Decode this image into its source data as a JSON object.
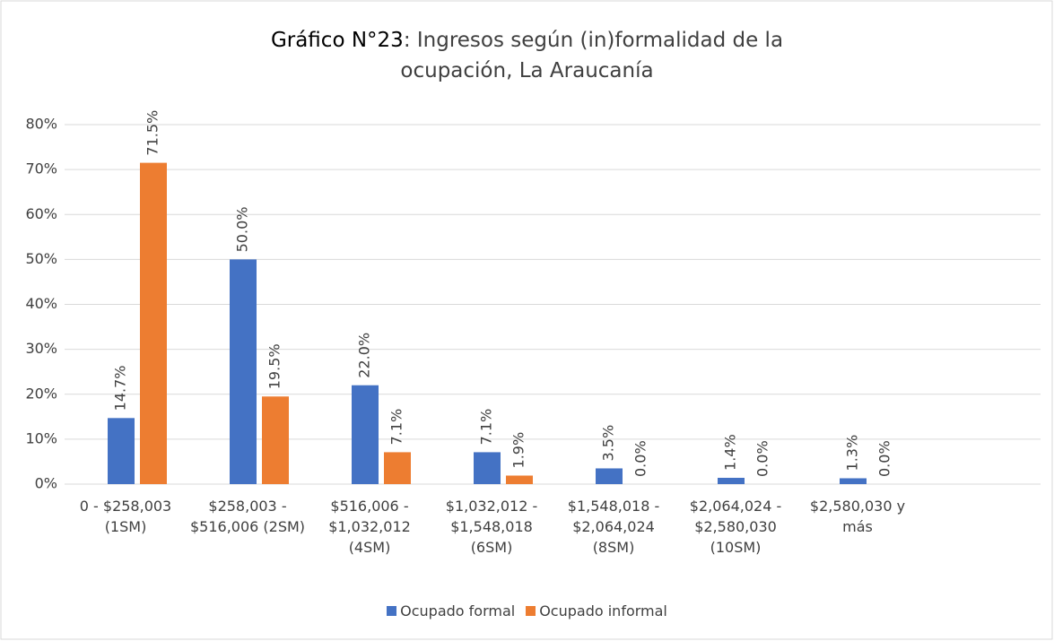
{
  "chart_data": {
    "type": "bar",
    "title": [
      "Gráfico N°23",
      ": Ingresos según (in)formalidad de la ocupación, La Araucanía"
    ],
    "categories": [
      "0 - $258,003 (1SM)",
      "$258,003 - $516,006 (2SM)",
      "$516,006 - $1,032,012 (4SM)",
      "$1,032,012 - $1,548,018 (6SM)",
      "$1,548,018 - $2,064,024 (8SM)",
      "$2,064,024 - $2,580,030 (10SM)",
      "$2,580,030 y más",
      null
    ],
    "series": [
      {
        "name": "Ocupado formal",
        "color": "#4472c4",
        "values": [
          14.7,
          50.0,
          22.0,
          7.1,
          3.5,
          1.4,
          1.3,
          null
        ],
        "value_labels": [
          "14.7%",
          "50.0%",
          "22.0%",
          "7.1%",
          "3.5%",
          "1.4%",
          "1.3%",
          null
        ]
      },
      {
        "name": "Ocupado informal",
        "color": "#ed7d31",
        "values": [
          71.5,
          19.5,
          7.1,
          1.9,
          0.0,
          0.0,
          0.0,
          null
        ],
        "value_labels": [
          "71.5%",
          "19.5%",
          "7.1%",
          "1.9%",
          "0.0%",
          "0.0%",
          "0.0%",
          null
        ]
      }
    ],
    "ylim": [
      0,
      80
    ],
    "yticks": [
      {
        "value": 0,
        "label": "0%"
      },
      {
        "value": 10,
        "label": "10%"
      },
      {
        "value": 20,
        "label": "20%"
      },
      {
        "value": 30,
        "label": "30%"
      },
      {
        "value": 40,
        "label": "40%"
      },
      {
        "value": 50,
        "label": "50%"
      },
      {
        "value": 60,
        "label": "60%"
      },
      {
        "value": 70,
        "label": "70%"
      },
      {
        "value": 80,
        "label": "80%"
      }
    ],
    "grid": true,
    "legend": "bottom"
  }
}
